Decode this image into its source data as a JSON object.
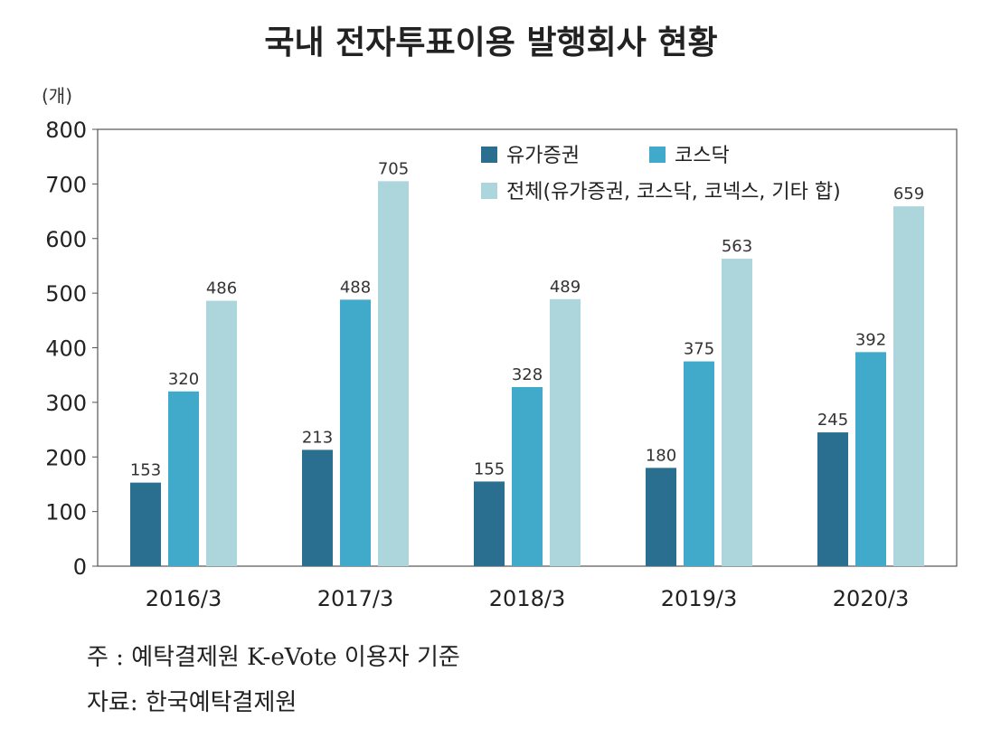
{
  "chart_data": {
    "type": "bar",
    "title": "국내 전자투표이용 발행회사 현황",
    "ylabel": "(개)",
    "xlabel": "",
    "ylim": [
      0,
      800
    ],
    "yticks": [
      0,
      100,
      200,
      300,
      400,
      500,
      600,
      700,
      800
    ],
    "grid": false,
    "legend_position": "top-right",
    "categories": [
      "2016/3",
      "2017/3",
      "2018/3",
      "2019/3",
      "2020/3"
    ],
    "series": [
      {
        "name": "유가증권",
        "color": "#2a6f90",
        "values": [
          153,
          213,
          155,
          180,
          245
        ]
      },
      {
        "name": "코스닥",
        "color": "#41a9ca",
        "values": [
          320,
          488,
          328,
          375,
          392
        ]
      },
      {
        "name": "전체(유가증권, 코스닥, 코넥스, 기타 합)",
        "color": "#acd5dc",
        "values": [
          486,
          705,
          489,
          563,
          659
        ]
      }
    ]
  },
  "notes": {
    "note": "주   : 예탁결제원 K-eVote 이용자 기준",
    "source": "자료: 한국예탁결제원"
  }
}
